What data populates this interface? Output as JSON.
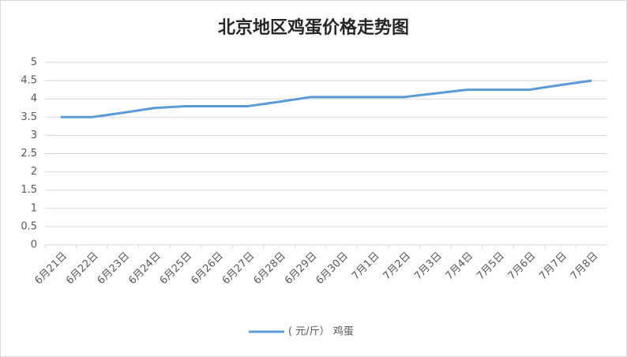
{
  "chart_data": {
    "type": "line",
    "title": "北京地区鸡蛋价格走势图",
    "categories": [
      "6月21日",
      "6月22日",
      "6月23日",
      "6月24日",
      "6月25日",
      "6月26日",
      "6月27日",
      "6月28日",
      "6月29日",
      "6月30日",
      "7月1日",
      "7月2日",
      "7月3日",
      "7月4日",
      "7月5日",
      "7月6日",
      "7月7日",
      "7月8日"
    ],
    "series": [
      {
        "name": "( 元/斤） 鸡蛋",
        "color": "#5b9bd5",
        "values": [
          3.5,
          3.5,
          3.62,
          3.75,
          3.8,
          3.8,
          3.8,
          3.92,
          4.05,
          4.05,
          4.05,
          4.05,
          4.15,
          4.25,
          4.25,
          4.25,
          4.38,
          4.5
        ]
      }
    ],
    "ylim": [
      0,
      5
    ],
    "yticks": [
      0,
      0.5,
      1,
      1.5,
      2,
      2.5,
      3,
      3.5,
      4,
      4.5,
      5
    ],
    "grid": true,
    "legend": "bottom"
  }
}
